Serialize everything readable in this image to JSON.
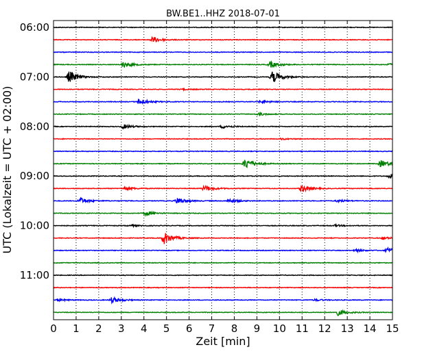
{
  "chart_data": {
    "type": "line",
    "title": "BW.BE1..HHZ 2018-07-01",
    "xlabel": "Zeit  [min]",
    "ylabel": "UTC (Lokalzeit = UTC + 02:00)",
    "xlim": [
      0,
      15
    ],
    "x_ticks": [
      "0",
      "1",
      "2",
      "3",
      "4",
      "5",
      "6",
      "7",
      "8",
      "9",
      "10",
      "11",
      "12",
      "13",
      "14",
      "15"
    ],
    "y_tick_labels": [
      "06:00",
      "07:00",
      "08:00",
      "09:00",
      "10:00",
      "11:00"
    ],
    "grid": true,
    "trace_interval_min": 15,
    "color_cycle": [
      "#000000",
      "#ff0000",
      "#0000ff",
      "#008000"
    ],
    "traces": [
      {
        "start": "06:00",
        "color": "#000000",
        "events": []
      },
      {
        "start": "06:15",
        "color": "#ff0000",
        "events": [
          {
            "t": 4.4,
            "amp": 0.7
          }
        ]
      },
      {
        "start": "06:30",
        "color": "#0000ff",
        "events": []
      },
      {
        "start": "06:45",
        "color": "#008000",
        "events": [
          {
            "t": 3.1,
            "amp": 0.7
          },
          {
            "t": 9.6,
            "amp": 0.7
          },
          {
            "t": 14.9,
            "amp": 0.3
          }
        ]
      },
      {
        "start": "07:00",
        "color": "#000000",
        "events": [
          {
            "t": 0.7,
            "amp": 1.4
          },
          {
            "t": 9.7,
            "amp": 1.4
          }
        ]
      },
      {
        "start": "07:15",
        "color": "#ff0000",
        "events": [
          {
            "t": 5.7,
            "amp": 0.15
          }
        ]
      },
      {
        "start": "07:30",
        "color": "#0000ff",
        "events": [
          {
            "t": 3.8,
            "amp": 0.7
          },
          {
            "t": 9.2,
            "amp": 0.4
          }
        ]
      },
      {
        "start": "07:45",
        "color": "#008000",
        "events": [
          {
            "t": 9.1,
            "amp": 0.3
          }
        ]
      },
      {
        "start": "08:00",
        "color": "#000000",
        "events": [
          {
            "t": 3.1,
            "amp": 0.5
          },
          {
            "t": 7.5,
            "amp": 0.4
          }
        ]
      },
      {
        "start": "08:15",
        "color": "#ff0000",
        "events": [
          {
            "t": 10.1,
            "amp": 0.15
          }
        ]
      },
      {
        "start": "08:30",
        "color": "#0000ff",
        "events": []
      },
      {
        "start": "08:45",
        "color": "#008000",
        "events": [
          {
            "t": 8.5,
            "amp": 1.3
          },
          {
            "t": 14.5,
            "amp": 0.8
          }
        ]
      },
      {
        "start": "09:00",
        "color": "#000000",
        "events": [
          {
            "t": 14.9,
            "amp": 0.5
          }
        ]
      },
      {
        "start": "09:15",
        "color": "#ff0000",
        "events": [
          {
            "t": 3.2,
            "amp": 0.4
          },
          {
            "t": 6.7,
            "amp": 0.7
          },
          {
            "t": 11.0,
            "amp": 0.8
          }
        ]
      },
      {
        "start": "09:30",
        "color": "#0000ff",
        "events": [
          {
            "t": 1.2,
            "amp": 0.7
          },
          {
            "t": 5.5,
            "amp": 0.8
          },
          {
            "t": 7.8,
            "amp": 0.5
          },
          {
            "t": 12.6,
            "amp": 0.3
          }
        ]
      },
      {
        "start": "09:45",
        "color": "#008000",
        "events": [
          {
            "t": 4.1,
            "amp": 0.5
          }
        ]
      },
      {
        "start": "10:00",
        "color": "#000000",
        "events": [
          {
            "t": 3.4,
            "amp": 0.2
          },
          {
            "t": 12.5,
            "amp": 0.2
          }
        ]
      },
      {
        "start": "10:15",
        "color": "#ff0000",
        "events": [
          {
            "t": 4.9,
            "amp": 1.4
          },
          {
            "t": 14.6,
            "amp": 0.3
          }
        ]
      },
      {
        "start": "10:30",
        "color": "#0000ff",
        "events": [
          {
            "t": 13.4,
            "amp": 0.3
          },
          {
            "t": 14.8,
            "amp": 0.6
          }
        ]
      },
      {
        "start": "10:45",
        "color": "#008000",
        "events": []
      },
      {
        "start": "11:00",
        "color": "#000000",
        "events": []
      },
      {
        "start": "11:15",
        "color": "#ff0000",
        "events": []
      },
      {
        "start": "11:30",
        "color": "#0000ff",
        "events": [
          {
            "t": 0.2,
            "amp": 0.3
          },
          {
            "t": 2.6,
            "amp": 0.7
          },
          {
            "t": 11.6,
            "amp": 0.2
          }
        ]
      },
      {
        "start": "11:45",
        "color": "#008000",
        "events": [
          {
            "t": 12.6,
            "amp": 0.7
          }
        ]
      }
    ]
  }
}
